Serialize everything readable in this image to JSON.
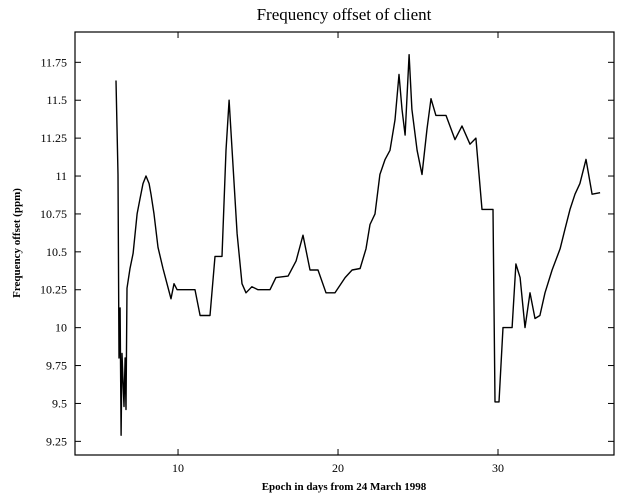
{
  "chart_data": {
    "type": "line",
    "title": "Frequency offset of client",
    "x_label": "Epoch in days from 24 March 1998",
    "y_label": "Frequency offset (ppm)",
    "color": "#000000",
    "xlim": [
      3.56,
      37.25
    ],
    "ylim": [
      9.16,
      11.95
    ],
    "xticks": [
      10,
      20,
      30
    ],
    "yticks": [
      9.25,
      9.5,
      9.75,
      10,
      10.25,
      10.5,
      10.75,
      11,
      11.25,
      11.5,
      11.75
    ],
    "x": [
      6.12,
      6.25,
      6.31,
      6.38,
      6.44,
      6.5,
      6.62,
      6.69,
      6.75,
      6.81,
      7.0,
      7.19,
      7.44,
      7.62,
      7.81,
      8.0,
      8.19,
      8.31,
      8.5,
      8.75,
      9.06,
      9.31,
      9.56,
      9.75,
      9.94,
      11.06,
      11.38,
      12.0,
      12.31,
      12.75,
      13.0,
      13.19,
      13.38,
      13.69,
      14.0,
      14.25,
      14.62,
      15.0,
      15.75,
      16.12,
      16.88,
      17.38,
      17.81,
      18.25,
      18.75,
      19.25,
      19.81,
      20.44,
      20.88,
      21.38,
      21.75,
      22.0,
      22.31,
      22.62,
      22.94,
      23.25,
      23.56,
      23.81,
      24.0,
      24.19,
      24.44,
      24.62,
      24.94,
      25.25,
      25.56,
      25.81,
      26.12,
      26.75,
      27.31,
      27.75,
      28.25,
      28.62,
      29.0,
      29.69,
      29.81,
      30.06,
      30.31,
      30.88,
      31.12,
      31.38,
      31.69,
      32.0,
      32.31,
      32.62,
      32.94,
      33.38,
      33.88,
      34.19,
      34.5,
      34.81,
      35.12,
      35.5,
      35.88,
      36.38
    ],
    "values": [
      11.63,
      11.01,
      9.8,
      10.13,
      9.29,
      9.83,
      9.48,
      9.8,
      9.46,
      10.26,
      10.39,
      10.49,
      10.75,
      10.85,
      10.95,
      11.0,
      10.95,
      10.88,
      10.75,
      10.53,
      10.39,
      10.29,
      10.19,
      10.29,
      10.25,
      10.25,
      10.08,
      10.08,
      10.47,
      10.47,
      11.17,
      11.5,
      11.17,
      10.62,
      10.29,
      10.23,
      10.27,
      10.25,
      10.25,
      10.33,
      10.34,
      10.44,
      10.61,
      10.38,
      10.38,
      10.23,
      10.23,
      10.33,
      10.38,
      10.39,
      10.52,
      10.68,
      10.75,
      11.01,
      11.11,
      11.17,
      11.37,
      11.67,
      11.44,
      11.27,
      11.8,
      11.44,
      11.17,
      11.01,
      11.31,
      11.51,
      11.4,
      11.4,
      11.24,
      11.33,
      11.21,
      11.25,
      10.78,
      10.78,
      9.51,
      9.51,
      10.0,
      10.0,
      10.42,
      10.33,
      10.0,
      10.23,
      10.06,
      10.08,
      10.23,
      10.38,
      10.52,
      10.65,
      10.78,
      10.88,
      10.95,
      11.11,
      10.88,
      10.89
    ]
  }
}
